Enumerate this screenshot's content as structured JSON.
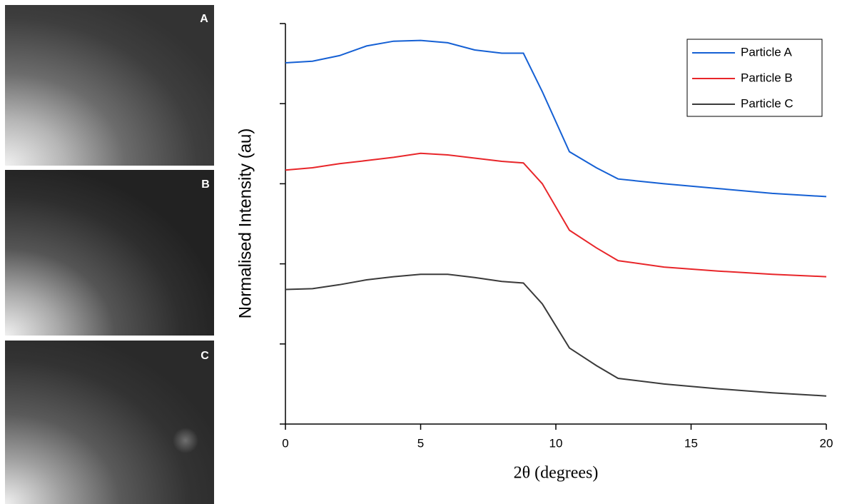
{
  "panel_labels": [
    "A",
    "B",
    "C"
  ],
  "chart_data": {
    "type": "line",
    "x_label": "2θ (degrees)",
    "y_label": "Normalised Intensity (au)",
    "x": [
      0,
      1,
      2,
      3,
      4,
      5,
      6,
      7,
      8,
      8.8,
      9.5,
      10.5,
      11.5,
      12.3,
      14,
      16,
      18,
      20
    ],
    "xlim": [
      0,
      20
    ],
    "xticks": [
      0,
      5,
      10,
      15,
      20
    ],
    "ylim": [
      0,
      5
    ],
    "yticks": [
      0,
      1,
      2,
      3,
      4,
      5
    ],
    "legend": "upper right",
    "series": [
      {
        "name": "Particle A",
        "color": "#1560d4",
        "values": [
          4.51,
          4.53,
          4.6,
          4.72,
          4.78,
          4.79,
          4.76,
          4.67,
          4.63,
          4.63,
          4.15,
          3.4,
          3.2,
          3.06,
          3.0,
          2.94,
          2.88,
          2.84
        ]
      },
      {
        "name": "Particle B",
        "color": "#e8262a",
        "values": [
          3.17,
          3.2,
          3.25,
          3.29,
          3.33,
          3.38,
          3.36,
          3.32,
          3.28,
          3.26,
          3.0,
          2.42,
          2.2,
          2.04,
          1.96,
          1.91,
          1.87,
          1.84
        ]
      },
      {
        "name": "Particle C",
        "color": "#3a3a3a",
        "values": [
          1.68,
          1.69,
          1.74,
          1.8,
          1.84,
          1.87,
          1.87,
          1.83,
          1.78,
          1.76,
          1.5,
          0.95,
          0.73,
          0.57,
          0.5,
          0.44,
          0.39,
          0.35
        ]
      }
    ]
  }
}
